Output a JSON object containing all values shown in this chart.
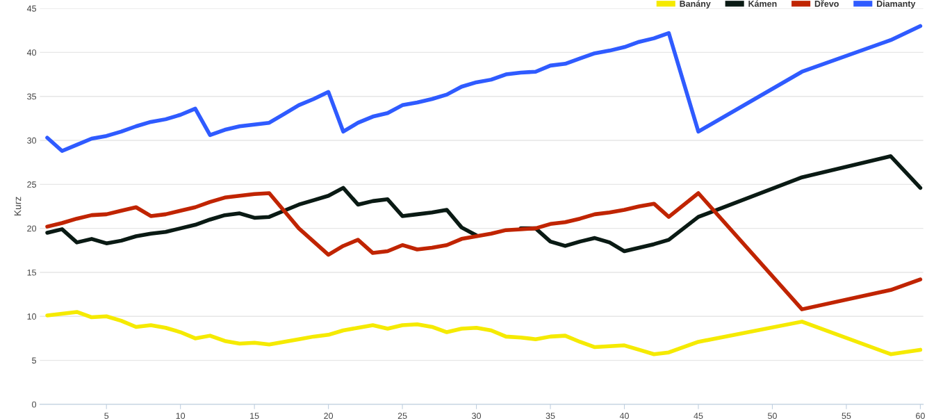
{
  "chart_data": {
    "type": "line",
    "ylabel": "Kurz",
    "x": [
      1,
      2,
      3,
      4,
      5,
      6,
      7,
      8,
      9,
      10,
      11,
      12,
      13,
      14,
      15,
      16,
      17,
      18,
      19,
      20,
      21,
      22,
      23,
      24,
      25,
      26,
      27,
      28,
      29,
      30,
      31,
      32,
      33,
      34,
      35,
      36,
      37,
      38,
      39,
      40,
      41,
      42,
      43,
      45,
      52,
      58,
      60
    ],
    "series": [
      {
        "name": "Banány",
        "color": "#f5ea00",
        "values": [
          10.1,
          10.3,
          10.5,
          9.9,
          10.0,
          9.5,
          8.8,
          9.0,
          8.7,
          8.2,
          7.5,
          7.8,
          7.2,
          6.9,
          7.0,
          6.8,
          7.1,
          7.4,
          7.7,
          7.9,
          8.4,
          8.7,
          9.0,
          8.6,
          9.0,
          9.1,
          8.8,
          8.2,
          8.6,
          8.7,
          8.4,
          7.7,
          7.6,
          7.4,
          7.7,
          7.8,
          7.1,
          6.5,
          6.6,
          6.7,
          6.2,
          5.7,
          5.9,
          7.1,
          9.4,
          5.7,
          6.2
        ]
      },
      {
        "name": "Kámen",
        "color": "#0a1a14",
        "values": [
          19.5,
          19.9,
          18.4,
          18.8,
          18.3,
          18.6,
          19.1,
          19.4,
          19.6,
          20.0,
          20.4,
          21.0,
          21.5,
          21.7,
          21.2,
          21.3,
          22.0,
          22.7,
          23.2,
          23.7,
          24.6,
          22.7,
          23.1,
          23.3,
          21.4,
          21.6,
          21.8,
          22.1,
          20.1,
          19.2,
          null,
          null,
          20.0,
          20.0,
          18.5,
          18.0,
          18.5,
          18.9,
          18.4,
          17.4,
          17.8,
          18.2,
          18.7,
          21.3,
          25.8,
          28.2,
          24.6
        ]
      },
      {
        "name": "Dřevo",
        "color": "#c02400",
        "values": [
          20.2,
          20.6,
          21.1,
          21.5,
          21.6,
          22.0,
          22.4,
          21.4,
          21.6,
          22.0,
          22.4,
          23.0,
          23.5,
          23.7,
          23.9,
          24.0,
          22.0,
          20.0,
          18.5,
          17.0,
          18.0,
          18.7,
          17.2,
          17.4,
          18.1,
          17.6,
          17.8,
          18.1,
          18.8,
          19.1,
          19.4,
          19.8,
          19.9,
          20.0,
          20.5,
          20.7,
          21.1,
          21.6,
          21.8,
          22.1,
          22.5,
          22.8,
          21.3,
          24.0,
          10.8,
          13.0,
          14.2
        ]
      },
      {
        "name": "Diamanty",
        "color": "#2f5bff",
        "values": [
          30.3,
          28.8,
          29.5,
          30.2,
          30.5,
          31.0,
          31.6,
          32.1,
          32.4,
          32.9,
          33.6,
          30.6,
          31.2,
          31.6,
          31.8,
          32.0,
          33.0,
          34.0,
          34.7,
          35.5,
          31.0,
          32.0,
          32.7,
          33.1,
          34.0,
          34.3,
          34.7,
          35.2,
          36.1,
          36.6,
          36.9,
          37.5,
          37.7,
          37.8,
          38.5,
          38.7,
          39.3,
          39.9,
          40.2,
          40.6,
          41.2,
          41.6,
          42.2,
          31.0,
          37.8,
          41.4,
          43.0
        ]
      }
    ],
    "xlim": [
      0.5,
      60.2
    ],
    "xticks": [
      5,
      10,
      15,
      20,
      25,
      30,
      35,
      40,
      45,
      50,
      55,
      60
    ],
    "ylim": [
      0,
      45
    ],
    "yticks": [
      0,
      5,
      10,
      15,
      20,
      25,
      30,
      35,
      40,
      45
    ],
    "grid": "y",
    "legend": "top right",
    "marker": "none",
    "line_style": "solid"
  }
}
